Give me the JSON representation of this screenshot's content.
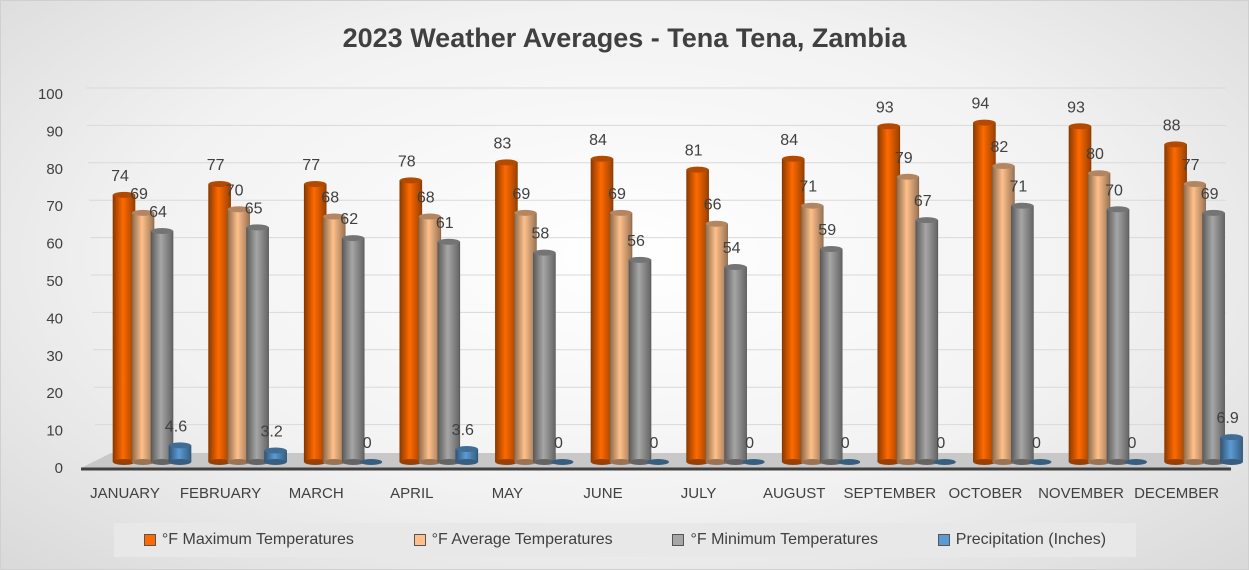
{
  "chart_data": {
    "type": "bar",
    "title": "2023 Weather Averages - Tena Tena, Zambia",
    "categories": [
      "JANUARY",
      "FEBRUARY",
      "MARCH",
      "APRIL",
      "MAY",
      "JUNE",
      "JULY",
      "AUGUST",
      "SEPTEMBER",
      "OCTOBER",
      "NOVEMBER",
      "DECEMBER"
    ],
    "series": [
      {
        "name": "°F Maximum Temperatures",
        "color": "#ff6a00",
        "values": [
          74,
          77,
          77,
          78,
          83,
          84,
          81,
          84,
          93,
          94,
          93,
          88
        ]
      },
      {
        "name": "°F Average Temperatures",
        "color": "#ffc08a",
        "values": [
          69,
          70,
          68,
          68,
          69,
          69,
          66,
          71,
          79,
          82,
          80,
          77
        ]
      },
      {
        "name": "°F Minimum Temperatures",
        "color": "#a6a6a6",
        "values": [
          64,
          65,
          62,
          61,
          58,
          56,
          54,
          59,
          67,
          71,
          70,
          69
        ]
      },
      {
        "name": "Precipitation (Inches)",
        "color": "#5b9bd5",
        "values": [
          4.6,
          3.2,
          0,
          3.6,
          0,
          0,
          0,
          0,
          0,
          0,
          0,
          6.9
        ]
      }
    ],
    "yticks": [
      0,
      10,
      20,
      30,
      40,
      50,
      60,
      70,
      80,
      90,
      100
    ],
    "ylim": [
      0,
      100
    ],
    "xlabel": "",
    "ylabel": "",
    "legend": "bottom",
    "grid": true
  }
}
